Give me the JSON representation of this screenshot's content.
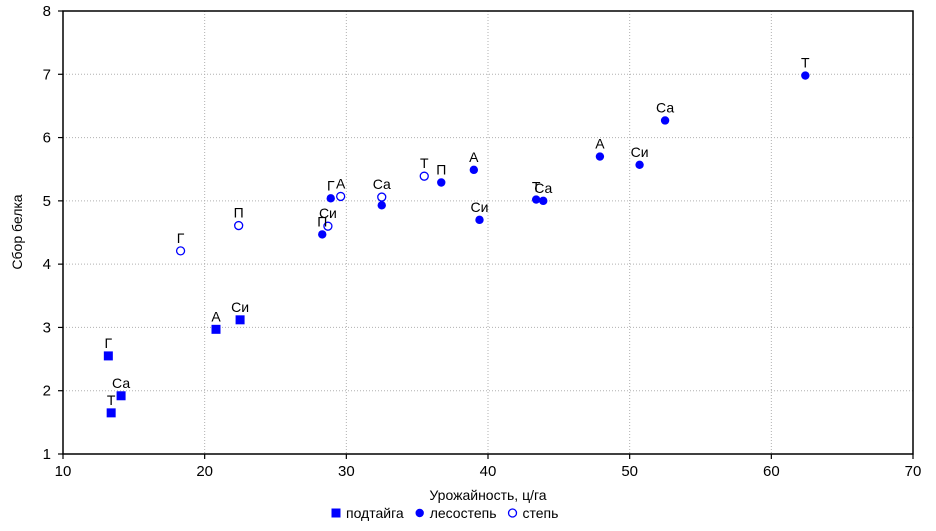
{
  "chart_data": {
    "type": "scatter",
    "xlabel": "Урожайность, ц/га",
    "ylabel": "Сбор белка",
    "xlim": [
      10,
      70
    ],
    "ylim": [
      1,
      8
    ],
    "xticks": [
      10,
      20,
      30,
      40,
      50,
      60,
      70
    ],
    "yticks": [
      1,
      2,
      3,
      4,
      5,
      6,
      7,
      8
    ],
    "grid": true,
    "legend_position": "bottom",
    "series": [
      {
        "name": "подтайга",
        "marker": "square",
        "color": "#0000ff",
        "points": [
          {
            "x": 13.2,
            "y": 2.55,
            "label": "Г"
          },
          {
            "x": 14.1,
            "y": 1.92,
            "label": "Са"
          },
          {
            "x": 13.4,
            "y": 1.65,
            "label": "Т"
          },
          {
            "x": 20.8,
            "y": 2.97,
            "label": "А"
          },
          {
            "x": 22.5,
            "y": 3.12,
            "label": "Си"
          }
        ]
      },
      {
        "name": "лесостепь",
        "marker": "filled-circle",
        "color": "#0000ff",
        "points": [
          {
            "x": 28.9,
            "y": 5.04,
            "label": "Г"
          },
          {
            "x": 28.3,
            "y": 4.47,
            "label": "П"
          },
          {
            "x": 32.5,
            "y": 4.93,
            "label": ""
          },
          {
            "x": 36.7,
            "y": 5.29,
            "label": "П"
          },
          {
            "x": 39.0,
            "y": 5.49,
            "label": "А"
          },
          {
            "x": 39.4,
            "y": 4.7,
            "label": "Си"
          },
          {
            "x": 43.4,
            "y": 5.02,
            "label": "Т"
          },
          {
            "x": 43.9,
            "y": 5.0,
            "label": "Са"
          },
          {
            "x": 47.9,
            "y": 5.7,
            "label": "А"
          },
          {
            "x": 50.7,
            "y": 5.57,
            "label": "Си"
          },
          {
            "x": 52.5,
            "y": 6.27,
            "label": "Са"
          },
          {
            "x": 62.4,
            "y": 6.98,
            "label": "Т"
          }
        ]
      },
      {
        "name": "степь",
        "marker": "open-circle",
        "color": "#0000ff",
        "points": [
          {
            "x": 18.3,
            "y": 4.21,
            "label": "Г"
          },
          {
            "x": 22.4,
            "y": 4.61,
            "label": "П"
          },
          {
            "x": 28.7,
            "y": 4.6,
            "label": "Си"
          },
          {
            "x": 29.6,
            "y": 5.07,
            "label": "А"
          },
          {
            "x": 32.5,
            "y": 5.06,
            "label": "Са"
          },
          {
            "x": 35.5,
            "y": 5.39,
            "label": "Т"
          }
        ]
      }
    ]
  }
}
